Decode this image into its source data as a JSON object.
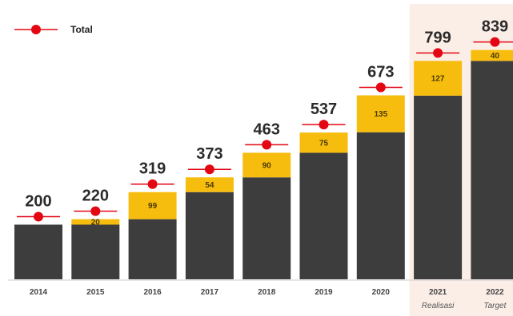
{
  "chart_data": {
    "type": "bar",
    "stacked": true,
    "categories": [
      "2014",
      "2015",
      "2016",
      "2017",
      "2018",
      "2019",
      "2020",
      "2021",
      "2022"
    ],
    "category_sublabels": [
      "",
      "",
      "",
      "",
      "",
      "",
      "",
      "Realisasi",
      "Target"
    ],
    "totals": [
      200,
      220,
      319,
      373,
      463,
      537,
      673,
      799,
      839
    ],
    "increments": [
      null,
      20,
      99,
      54,
      90,
      75,
      135,
      127,
      40
    ],
    "base": [
      200,
      200,
      220,
      319,
      373,
      463,
      538,
      672,
      799
    ],
    "legend": {
      "entries": [
        {
          "label": "Total",
          "marker": "red-dot-line"
        }
      ],
      "placement": "top-left"
    },
    "highlighted_categories": [
      "2021",
      "2022"
    ],
    "ylim": [
      0,
      900
    ],
    "grid": false,
    "colors": {
      "base": "#3d3d3d",
      "increment": "#f7bd0e",
      "marker": "#e30613",
      "highlight_band": "#fbeee7"
    }
  }
}
